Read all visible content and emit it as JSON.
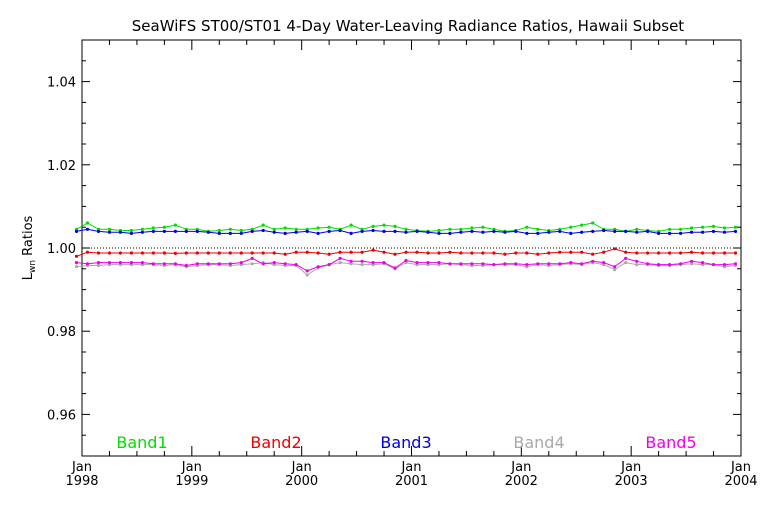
{
  "chart_data": {
    "type": "line",
    "title": "SeaWiFS ST00/ST01 4-Day Water-Leaving Radiance Ratios, Hawaii Subset",
    "ylabel_main": "L",
    "ylabel_sub": "wn",
    "ylabel_rest": " Ratios",
    "ylim": [
      0.95,
      1.05
    ],
    "y_ticks": [
      0.96,
      0.98,
      1.0,
      1.02,
      1.04
    ],
    "y_tick_labels": [
      "0.96",
      "0.98",
      "1.00",
      "1.02",
      "1.04"
    ],
    "xlim": [
      1998.0,
      2004.0
    ],
    "x_ticks": [
      {
        "value": 1998,
        "month": "Jan",
        "year": "1998"
      },
      {
        "value": 1999,
        "month": "Jan",
        "year": "1999"
      },
      {
        "value": 2000,
        "month": "Jan",
        "year": "2000"
      },
      {
        "value": 2001,
        "month": "Jan",
        "year": "2001"
      },
      {
        "value": 2002,
        "month": "Jan",
        "year": "2002"
      },
      {
        "value": 2003,
        "month": "Jan",
        "year": "2003"
      },
      {
        "value": 2004,
        "month": "Jan",
        "year": "2004"
      }
    ],
    "reference_line": 1.0,
    "legend_position": "bottom",
    "x": [
      1997.95,
      1998.05,
      1998.15,
      1998.25,
      1998.35,
      1998.45,
      1998.55,
      1998.65,
      1998.75,
      1998.85,
      1998.95,
      1999.05,
      1999.15,
      1999.25,
      1999.35,
      1999.45,
      1999.55,
      1999.65,
      1999.75,
      1999.85,
      1999.95,
      2000.05,
      2000.15,
      2000.25,
      2000.35,
      2000.45,
      2000.55,
      2000.65,
      2000.75,
      2000.85,
      2000.95,
      2001.05,
      2001.15,
      2001.25,
      2001.35,
      2001.45,
      2001.55,
      2001.65,
      2001.75,
      2001.85,
      2001.95,
      2002.05,
      2002.15,
      2002.25,
      2002.35,
      2002.45,
      2002.55,
      2002.65,
      2002.75,
      2002.85,
      2002.95,
      2003.05,
      2003.15,
      2003.25,
      2003.35,
      2003.45,
      2003.55,
      2003.65,
      2003.75,
      2003.85,
      2003.95
    ],
    "series": [
      {
        "name": "Band1",
        "color": "#00dd00",
        "values": [
          1.0045,
          1.006,
          1.0045,
          1.0045,
          1.0042,
          1.0042,
          1.0045,
          1.0048,
          1.005,
          1.0055,
          1.0045,
          1.0045,
          1.004,
          1.0042,
          1.0045,
          1.0042,
          1.0045,
          1.0055,
          1.0045,
          1.0048,
          1.0045,
          1.0045,
          1.0048,
          1.005,
          1.0045,
          1.0055,
          1.0045,
          1.0052,
          1.0055,
          1.0052,
          1.0045,
          1.0042,
          1.004,
          1.0042,
          1.0045,
          1.0045,
          1.0048,
          1.005,
          1.0045,
          1.004,
          1.0042,
          1.005,
          1.0045,
          1.0042,
          1.0045,
          1.005,
          1.0055,
          1.006,
          1.0045,
          1.0045,
          1.004,
          1.0045,
          1.0042,
          1.004,
          1.0045,
          1.0045,
          1.0048,
          1.005,
          1.0052,
          1.0048,
          1.005
        ]
      },
      {
        "name": "Band2",
        "color": "#ee0000",
        "values": [
          0.998,
          0.999,
          0.9988,
          0.9988,
          0.9988,
          0.9988,
          0.9988,
          0.9988,
          0.9988,
          0.9987,
          0.9988,
          0.9988,
          0.9988,
          0.9988,
          0.9988,
          0.9988,
          0.9988,
          0.9988,
          0.9988,
          0.9985,
          0.999,
          0.999,
          0.9988,
          0.9985,
          0.999,
          0.999,
          0.999,
          0.9995,
          0.999,
          0.9985,
          0.999,
          0.999,
          0.9988,
          0.9988,
          0.999,
          0.9988,
          0.9988,
          0.9988,
          0.9988,
          0.9985,
          0.9988,
          0.9988,
          0.9985,
          0.9988,
          0.999,
          0.999,
          0.999,
          0.9985,
          0.999,
          0.9998,
          0.999,
          0.9988,
          0.9988,
          0.9988,
          0.9988,
          0.9988,
          0.999,
          0.9988,
          0.9988,
          0.9988,
          0.9988
        ]
      },
      {
        "name": "Band3",
        "color": "#0000dd",
        "values": [
          1.004,
          1.0045,
          1.004,
          1.0038,
          1.0038,
          1.0035,
          1.0038,
          1.004,
          1.004,
          1.004,
          1.004,
          1.004,
          1.0038,
          1.0035,
          1.0035,
          1.0035,
          1.004,
          1.0042,
          1.0038,
          1.0035,
          1.0038,
          1.004,
          1.0035,
          1.004,
          1.0042,
          1.0035,
          1.004,
          1.0042,
          1.004,
          1.004,
          1.0038,
          1.004,
          1.0038,
          1.0035,
          1.0035,
          1.0038,
          1.004,
          1.0038,
          1.004,
          1.0038,
          1.004,
          1.0035,
          1.0035,
          1.0038,
          1.004,
          1.0035,
          1.0038,
          1.004,
          1.0042,
          1.004,
          1.004,
          1.0038,
          1.004,
          1.0035,
          1.0035,
          1.0035,
          1.0038,
          1.0038,
          1.004,
          1.0038,
          1.004
        ]
      },
      {
        "name": "Band4",
        "color": "#aaaaaa",
        "values": [
          0.9955,
          0.9958,
          0.9958,
          0.996,
          0.996,
          0.996,
          0.996,
          0.996,
          0.9958,
          0.996,
          0.9955,
          0.9958,
          0.996,
          0.996,
          0.9958,
          0.996,
          0.9962,
          0.9965,
          0.996,
          0.9958,
          0.9958,
          0.9935,
          0.9952,
          0.996,
          0.9965,
          0.9962,
          0.996,
          0.996,
          0.9962,
          0.995,
          0.9965,
          0.996,
          0.996,
          0.996,
          0.9962,
          0.996,
          0.9958,
          0.9958,
          0.996,
          0.996,
          0.996,
          0.9955,
          0.996,
          0.9958,
          0.996,
          0.9962,
          0.996,
          0.9965,
          0.996,
          0.9948,
          0.9965,
          0.996,
          0.996,
          0.9958,
          0.9958,
          0.996,
          0.9962,
          0.996,
          0.996,
          0.9955,
          0.9958
        ]
      },
      {
        "name": "Band5",
        "color": "#ee00ee",
        "values": [
          0.9965,
          0.9962,
          0.9965,
          0.9965,
          0.9965,
          0.9965,
          0.9965,
          0.9962,
          0.9962,
          0.9962,
          0.9958,
          0.9962,
          0.9962,
          0.9962,
          0.9962,
          0.9965,
          0.9975,
          0.9962,
          0.9965,
          0.9962,
          0.996,
          0.9945,
          0.9955,
          0.996,
          0.9975,
          0.9968,
          0.9968,
          0.9965,
          0.9965,
          0.9952,
          0.997,
          0.9965,
          0.9965,
          0.9965,
          0.9962,
          0.9962,
          0.9962,
          0.9962,
          0.996,
          0.9962,
          0.9962,
          0.996,
          0.9962,
          0.9962,
          0.9962,
          0.9965,
          0.9962,
          0.9968,
          0.9965,
          0.9955,
          0.9975,
          0.9968,
          0.9962,
          0.996,
          0.996,
          0.9962,
          0.9968,
          0.9965,
          0.996,
          0.996,
          0.9962
        ]
      }
    ]
  }
}
